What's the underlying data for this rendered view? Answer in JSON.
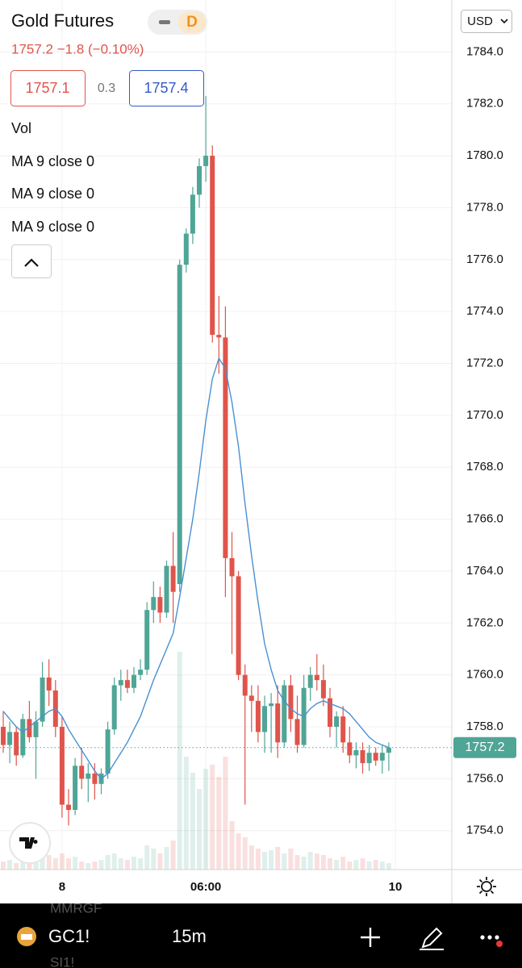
{
  "ui": {
    "symbol": "Gold Futures",
    "interval_badge": "D",
    "quote": "1757.2  −1.8 (−0.10%)",
    "bid": "1757.1",
    "spread": "0.3",
    "ask": "1757.4",
    "indicators": [
      "Vol",
      "MA 9 close 0",
      "MA 9 close 0",
      "MA 9 close 0"
    ],
    "currency": "USD",
    "ticker": "GC1!",
    "timeframe": "15m",
    "watch_above": "MMRGF",
    "watch_below": "SI1!"
  },
  "chart_data": {
    "type": "candlestick",
    "categories": [
      null,
      null,
      null,
      null,
      null,
      null,
      null,
      null,
      null,
      "8",
      null,
      null,
      null,
      null,
      null,
      null,
      null,
      null,
      null,
      null,
      null,
      null,
      null,
      null,
      null,
      null,
      null,
      null,
      null,
      null,
      null,
      "06:00",
      null,
      null,
      null,
      null,
      null,
      null,
      null,
      null,
      null,
      null,
      null,
      null,
      null,
      null,
      null,
      null,
      null,
      null,
      null,
      null,
      null,
      null,
      null,
      null,
      null,
      null,
      null,
      null,
      "10"
    ],
    "open": [
      1758.0,
      1757.3,
      1757.8,
      1756.9,
      1758.3,
      1757.6,
      1758.2,
      1759.9,
      1759.4,
      1758.0,
      1755.0,
      1754.8,
      1756.5,
      1756.0,
      1756.2,
      1755.8,
      1756.2,
      1757.9,
      1759.6,
      1759.8,
      1759.5,
      1760.0,
      1760.2,
      1762.5,
      1763.0,
      1762.4,
      1764.2,
      1763.5,
      1775.8,
      1777.0,
      1778.5,
      1779.6,
      1780.0,
      1773.1,
      1773.0,
      1764.5,
      1763.8,
      1760.0,
      1759.2,
      1759.0,
      1757.8,
      1758.8,
      1758.9,
      1757.4,
      1759.6,
      1758.3,
      1757.3,
      1759.5,
      1760.0,
      1759.8,
      1759.1,
      1758.0,
      1758.4,
      1757.4,
      1756.9,
      1757.1,
      1756.6,
      1757.0,
      1756.7,
      1757.0,
      null
    ],
    "high": [
      1758.6,
      1758.2,
      1758.0,
      1758.5,
      1759.0,
      1758.6,
      1760.5,
      1760.6,
      1759.8,
      1758.4,
      1755.6,
      1756.8,
      1757.2,
      1756.6,
      1756.6,
      1756.4,
      1758.2,
      1759.9,
      1760.2,
      1760.2,
      1760.3,
      1760.6,
      1762.8,
      1763.6,
      1763.4,
      1764.4,
      1765.5,
      1776.0,
      1777.2,
      1778.8,
      1779.9,
      1782.3,
      1780.4,
      1774.6,
      1774.2,
      1765.5,
      1764.0,
      1760.4,
      1759.6,
      1759.6,
      1759.2,
      1759.3,
      1759.6,
      1759.8,
      1760.0,
      1759.2,
      1760.0,
      1760.3,
      1760.8,
      1760.4,
      1759.5,
      1758.6,
      1758.8,
      1758.0,
      1757.4,
      1757.4,
      1757.3,
      1757.2,
      1757.3,
      1757.4,
      null
    ],
    "low": [
      1757.0,
      1756.6,
      1756.5,
      1756.8,
      1757.4,
      1756.0,
      1758.0,
      1758.8,
      1757.6,
      1754.5,
      1754.2,
      1754.6,
      1755.6,
      1755.1,
      1755.2,
      1755.4,
      1756.0,
      1757.7,
      1759.0,
      1759.3,
      1759.3,
      1759.8,
      1760.0,
      1762.0,
      1762.0,
      1762.2,
      1762.0,
      1763.2,
      1775.5,
      1776.6,
      1778.0,
      1779.0,
      1772.8,
      1771.6,
      1763.0,
      1760.8,
      1759.8,
      1755.0,
      1757.8,
      1757.4,
      1757.0,
      1757.0,
      1756.8,
      1757.2,
      1757.8,
      1757.0,
      1757.2,
      1759.0,
      1759.4,
      1758.8,
      1757.6,
      1757.2,
      1757.0,
      1756.6,
      1756.4,
      1756.2,
      1756.3,
      1756.5,
      1756.2,
      1756.3,
      null
    ],
    "close": [
      1757.3,
      1757.8,
      1756.9,
      1758.3,
      1757.6,
      1758.2,
      1759.9,
      1759.4,
      1758.0,
      1755.0,
      1754.8,
      1756.5,
      1756.0,
      1756.2,
      1755.8,
      1756.2,
      1757.9,
      1759.6,
      1759.8,
      1759.5,
      1760.0,
      1760.2,
      1762.5,
      1763.0,
      1762.4,
      1764.2,
      1763.2,
      1775.8,
      1777.0,
      1778.5,
      1779.6,
      1780.0,
      1773.1,
      1773.0,
      1764.5,
      1763.8,
      1760.0,
      1759.2,
      1759.0,
      1757.8,
      1758.8,
      1758.9,
      1757.4,
      1759.6,
      1758.3,
      1757.3,
      1759.5,
      1760.0,
      1759.8,
      1759.1,
      1758.0,
      1758.4,
      1757.4,
      1756.9,
      1757.1,
      1756.6,
      1757.0,
      1756.7,
      1757.0,
      1757.2,
      null
    ],
    "volume": [
      10,
      12,
      8,
      14,
      10,
      12,
      22,
      18,
      14,
      20,
      14,
      16,
      10,
      8,
      10,
      12,
      18,
      20,
      14,
      12,
      16,
      14,
      30,
      26,
      20,
      28,
      36,
      270,
      140,
      120,
      100,
      125,
      130,
      115,
      140,
      60,
      45,
      40,
      30,
      26,
      22,
      24,
      28,
      20,
      26,
      18,
      16,
      22,
      20,
      18,
      14,
      12,
      16,
      10,
      12,
      14,
      10,
      12,
      10,
      8,
      null
    ],
    "ma": [
      1758.6,
      1758.3,
      1758.0,
      1757.8,
      1758.0,
      1758.2,
      1758.4,
      1758.6,
      1758.7,
      1758.4,
      1757.9,
      1757.5,
      1757.1,
      1756.7,
      1756.3,
      1756.0,
      1756.2,
      1756.6,
      1757.0,
      1757.4,
      1757.9,
      1758.4,
      1759.1,
      1759.8,
      1760.4,
      1761.0,
      1761.6,
      1763.0,
      1764.5,
      1766.0,
      1767.8,
      1769.8,
      1771.4,
      1772.2,
      1771.8,
      1770.5,
      1768.8,
      1766.6,
      1764.6,
      1762.8,
      1761.2,
      1760.2,
      1759.4,
      1759.0,
      1758.7,
      1758.5,
      1758.4,
      1758.7,
      1758.9,
      1759.0,
      1758.9,
      1758.8,
      1758.7,
      1758.5,
      1758.2,
      1757.9,
      1757.6,
      1757.4,
      1757.3,
      1757.2,
      null
    ],
    "up_color": "#4fa596",
    "down_color": "#e0544b",
    "ma_color": "#4a90d0",
    "last_price": 1757.2,
    "ylim": [
      1752.5,
      1786
    ],
    "yticks": [
      {
        "value": 1754,
        "label": "1754.0"
      },
      {
        "value": 1756,
        "label": "1756.0"
      },
      {
        "value": 1758,
        "label": "1758.0"
      },
      {
        "value": 1760,
        "label": "1760.0"
      },
      {
        "value": 1762,
        "label": "1762.0"
      },
      {
        "value": 1764,
        "label": "1764.0"
      },
      {
        "value": 1766,
        "label": "1766.0"
      },
      {
        "value": 1768,
        "label": "1768.0"
      },
      {
        "value": 1770,
        "label": "1770.0"
      },
      {
        "value": 1772,
        "label": "1772.0"
      },
      {
        "value": 1774,
        "label": "1774.0"
      },
      {
        "value": 1776,
        "label": "1776.0"
      },
      {
        "value": 1778,
        "label": "1778.0"
      },
      {
        "value": 1780,
        "label": "1780.0"
      },
      {
        "value": 1782,
        "label": "1782.0"
      },
      {
        "value": 1784,
        "label": "1784.0"
      }
    ],
    "grid": true
  }
}
